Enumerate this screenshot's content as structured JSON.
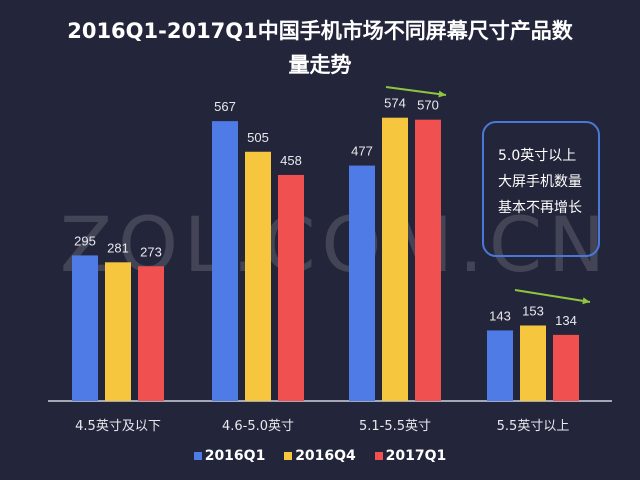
{
  "chart_data": {
    "type": "bar",
    "title": "2016Q1-2017Q1中国手机市场不同屏幕尺寸产品数量走势",
    "categories": [
      "4.5英寸及以下",
      "4.6-5.0英寸",
      "5.1-5.5英寸",
      "5.5英寸以上"
    ],
    "series": [
      {
        "name": "2016Q1",
        "color": "#4f7be6",
        "values": [
          295,
          567,
          477,
          143
        ]
      },
      {
        "name": "2016Q4",
        "color": "#f7c63f",
        "values": [
          281,
          505,
          574,
          153
        ]
      },
      {
        "name": "2017Q1",
        "color": "#f05050",
        "values": [
          273,
          458,
          570,
          134
        ]
      }
    ],
    "ylim": [
      0,
      620
    ],
    "annotation": [
      "5.0英寸以上",
      "大屏手机数量",
      "基本不再增长"
    ],
    "watermark": "ZOL.COM.CN",
    "arrow_color": "#8ec63f"
  }
}
